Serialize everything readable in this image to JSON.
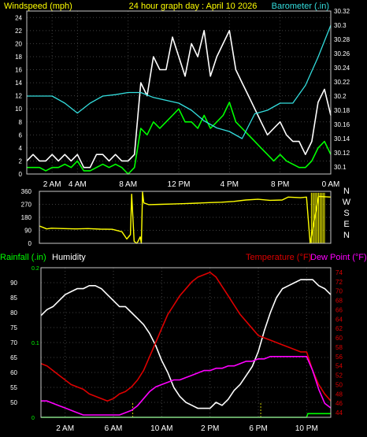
{
  "colors": {
    "white": "#ffffff",
    "green": "#00ff00",
    "cyan": "#33dddd",
    "yellow": "#ffff00",
    "red": "#dd0000",
    "magenta": "#ff00ff",
    "olive": "#cccc00",
    "grid": "#404040",
    "axis": "#c8c8c8"
  },
  "chart_data": [
    {
      "type": "line",
      "title": "24 hour graph day : April 10 2026",
      "left_label": "Windspeed (mph)",
      "right_label": "Barometer (.in)",
      "x_ticks": [
        "2 AM",
        "4 AM",
        "8 AM",
        "12 PM",
        "4 PM",
        "8 PM",
        "0 AM"
      ],
      "y_ticks_left": [
        "0",
        "2",
        "4",
        "6",
        "8",
        "10",
        "12",
        "14",
        "16",
        "18",
        "20",
        "22",
        "24"
      ],
      "y_ticks_right": [
        "30.1",
        "30.12",
        "30.14",
        "30.16",
        "30.18",
        "30.2",
        "30.22",
        "30.24",
        "30.26",
        "30.28",
        "30.3",
        "30.32"
      ],
      "ylim_left": [
        0,
        25
      ],
      "ylim_right": [
        30.09,
        30.32
      ],
      "xlim": [
        0,
        24
      ],
      "grid": true,
      "series": [
        {
          "axis": "left",
          "color": "white",
          "role": "gust",
          "x": [
            0,
            0.5,
            1,
            1.5,
            2,
            2.5,
            3,
            3.5,
            4,
            4.5,
            5,
            5.5,
            6,
            6.5,
            7,
            7.5,
            8,
            8.5,
            9,
            9.5,
            10,
            10.5,
            11,
            11.5,
            12,
            12.5,
            13,
            13.5,
            14,
            14.5,
            15,
            15.5,
            16,
            16.5,
            17,
            17.5,
            18,
            18.5,
            19,
            19.5,
            20,
            20.5,
            21,
            21.5,
            22,
            22.5,
            23,
            23.5,
            24
          ],
          "values": [
            2,
            3,
            2,
            2,
            3,
            2,
            3,
            2,
            3,
            1,
            1,
            3,
            3,
            2,
            3,
            2,
            2,
            3,
            14,
            12,
            18,
            16,
            16,
            21,
            18,
            15,
            20,
            18,
            22,
            15,
            18,
            20,
            22,
            16,
            14,
            12,
            10,
            8,
            6,
            7,
            8,
            6,
            5,
            5,
            3,
            5,
            11,
            13,
            9
          ]
        },
        {
          "axis": "left",
          "color": "green",
          "role": "average",
          "x": [
            0,
            0.5,
            1,
            1.5,
            2,
            2.5,
            3,
            3.5,
            4,
            4.5,
            5,
            5.5,
            6,
            6.5,
            7,
            7.5,
            8,
            8.5,
            9,
            9.5,
            10,
            10.5,
            11,
            11.5,
            12,
            12.5,
            13,
            13.5,
            14,
            14.5,
            15,
            15.5,
            16,
            16.5,
            17,
            17.5,
            18,
            18.5,
            19,
            19.5,
            20,
            20.5,
            21,
            21.5,
            22,
            22.5,
            23,
            23.5,
            24
          ],
          "values": [
            1,
            1,
            1,
            0.5,
            1,
            1,
            1.5,
            1,
            2,
            0.5,
            0.5,
            1,
            1.5,
            1,
            1.5,
            1,
            0,
            1,
            7,
            6,
            8,
            7,
            8,
            9,
            10,
            8,
            8,
            7,
            9,
            7,
            8,
            9,
            11,
            8,
            7,
            6,
            5,
            4,
            3,
            2,
            3,
            2,
            1.5,
            1,
            1,
            2,
            4,
            5,
            3
          ]
        },
        {
          "axis": "right",
          "color": "cyan",
          "role": "barometer",
          "x": [
            0,
            1,
            2,
            3,
            4,
            5,
            6,
            7,
            8,
            9,
            10,
            11,
            12,
            13,
            14,
            15,
            16,
            17,
            18,
            19,
            20,
            21,
            22,
            23,
            24
          ],
          "values": [
            30.2,
            30.2,
            30.2,
            30.19,
            30.176,
            30.19,
            30.2,
            30.202,
            30.205,
            30.205,
            30.198,
            30.194,
            30.19,
            30.18,
            30.165,
            30.155,
            30.15,
            30.14,
            30.175,
            30.18,
            30.19,
            30.19,
            30.215,
            30.255,
            30.3
          ]
        }
      ]
    },
    {
      "type": "line",
      "y_ticks": [
        "0",
        "45",
        "90",
        "135",
        "180",
        "225",
        "270",
        "315",
        "360"
      ],
      "direction_labels": [
        "N",
        "W",
        "S",
        "E",
        "N"
      ],
      "ylim": [
        0,
        360
      ],
      "xlim": [
        0,
        24
      ],
      "grid": true,
      "series": [
        {
          "color": "yellow",
          "role": "wind direction",
          "x": [
            0,
            0.3,
            0.6,
            1,
            2,
            3,
            4,
            5,
            6,
            6.8,
            7.2,
            7.5,
            7.6,
            7.8,
            8.0,
            8.1,
            8.3,
            8.4,
            8.5,
            8.6,
            9,
            10,
            11,
            12,
            13,
            14,
            15,
            16,
            17,
            18,
            19,
            20,
            20.5,
            21,
            21.5,
            22,
            22.3,
            23,
            24
          ],
          "values": [
            120,
            110,
            100,
            105,
            102,
            100,
            102,
            98,
            97,
            80,
            30,
            60,
            340,
            15,
            0,
            10,
            45,
            0,
            355,
            280,
            268,
            270,
            272,
            275,
            278,
            282,
            285,
            290,
            300,
            305,
            298,
            300,
            320,
            318,
            316,
            320,
            0,
            325,
            320
          ]
        }
      ]
    },
    {
      "type": "line",
      "left_label": "Rainfall (.in)",
      "left_label2": "Humidity",
      "right_label": "Temperature (°F)",
      "right_label2": "Dew Point (°F)",
      "x_ticks": [
        "2 AM",
        "6 AM",
        "10 AM",
        "2 PM",
        "6 PM",
        "10 PM"
      ],
      "y_ticks_left": [
        "50",
        "55",
        "60",
        "65",
        "70",
        "75",
        "80",
        "85",
        "90"
      ],
      "y_ticks_rain": [
        "0",
        "0.1",
        "0.2"
      ],
      "y_ticks_right": [
        "44",
        "46",
        "48",
        "50",
        "52",
        "54",
        "56",
        "58",
        "60",
        "62",
        "64",
        "66",
        "68",
        "70",
        "72",
        "74"
      ],
      "ylim_humidity": [
        45,
        95
      ],
      "ylim_temp": [
        43,
        75
      ],
      "ylim_rain": [
        0,
        0.2
      ],
      "xlim": [
        0,
        24
      ],
      "grid": true,
      "series": [
        {
          "axis": "humidity",
          "color": "white",
          "role": "humidity",
          "x": [
            0,
            0.5,
            1,
            1.5,
            2,
            2.5,
            3,
            3.5,
            4,
            4.5,
            5,
            5.5,
            6,
            6.5,
            7,
            7.5,
            8,
            8.5,
            9,
            9.5,
            10,
            10.5,
            11,
            11.5,
            12,
            12.5,
            13,
            13.5,
            14,
            14.5,
            15,
            15.5,
            16,
            16.5,
            17,
            17.5,
            18,
            18.5,
            19,
            19.5,
            20,
            20.5,
            21,
            21.5,
            22,
            22.5,
            23,
            23.5,
            24
          ],
          "values": [
            79,
            81,
            82,
            84,
            86,
            87,
            88,
            88,
            89,
            89,
            88,
            86,
            84,
            82,
            82,
            80,
            78,
            76,
            73,
            69,
            64,
            60,
            55,
            52,
            50,
            49,
            48,
            48,
            48,
            50,
            49,
            51,
            54,
            56,
            59,
            62,
            67,
            74,
            80,
            85,
            88,
            89,
            90,
            91,
            91,
            91,
            89,
            88,
            86
          ]
        },
        {
          "axis": "temp",
          "color": "red",
          "role": "temperature",
          "x": [
            0,
            0.5,
            1,
            1.5,
            2,
            2.5,
            3,
            3.5,
            4,
            4.5,
            5,
            5.5,
            6,
            6.5,
            7,
            7.5,
            8,
            8.5,
            9,
            9.5,
            10,
            10.5,
            11,
            11.5,
            12,
            12.5,
            13,
            13.5,
            14,
            14.5,
            15,
            15.5,
            16,
            16.5,
            17,
            17.5,
            18,
            18.5,
            19,
            19.5,
            20,
            20.5,
            21,
            21.5,
            22,
            22.5,
            23,
            23.5,
            24
          ],
          "values": [
            54.5,
            54,
            53,
            52,
            51,
            50,
            49.5,
            49,
            48,
            47.5,
            47,
            46.5,
            47,
            48,
            48.5,
            49.5,
            51,
            53,
            56,
            59,
            62,
            65,
            67,
            69,
            70.5,
            72,
            73,
            73.5,
            74,
            73,
            71,
            69,
            67,
            65,
            63.5,
            62,
            60.5,
            60,
            59.5,
            59,
            58.5,
            58,
            57.5,
            57,
            57,
            53,
            50,
            48,
            46.5
          ]
        },
        {
          "axis": "temp",
          "color": "magenta",
          "role": "dew point",
          "x": [
            0,
            0.5,
            1,
            1.5,
            2,
            2.5,
            3,
            3.5,
            4,
            4.5,
            5,
            5.5,
            6,
            6.5,
            7,
            7.5,
            8,
            8.5,
            9,
            9.5,
            10,
            10.5,
            11,
            11.5,
            12,
            12.5,
            13,
            13.5,
            14,
            14.5,
            15,
            15.5,
            16,
            16.5,
            17,
            17.5,
            18,
            18.5,
            19,
            19.5,
            20,
            20.5,
            21,
            21.5,
            22,
            22.5,
            23,
            23.5,
            24
          ],
          "values": [
            46.5,
            46.5,
            46,
            45.5,
            45,
            44.5,
            44,
            43.5,
            43.5,
            43.5,
            43.5,
            43.5,
            43.5,
            43.5,
            44,
            44.5,
            45.5,
            47,
            48.5,
            49.5,
            50,
            50.5,
            51,
            51,
            51.5,
            52,
            52.5,
            53,
            53,
            53.5,
            53.5,
            54,
            54,
            54.5,
            55,
            55,
            55.5,
            55.5,
            56,
            56,
            56,
            56,
            56,
            56,
            56,
            53,
            49,
            46,
            45
          ]
        },
        {
          "axis": "rain",
          "color": "green",
          "role": "rainfall",
          "x": [
            0,
            22,
            22.1,
            24
          ],
          "values": [
            0,
            0,
            0.005,
            0.005
          ]
        }
      ],
      "markers": {
        "color": "olive",
        "x": [
          7.6,
          18.2
        ]
      }
    }
  ]
}
